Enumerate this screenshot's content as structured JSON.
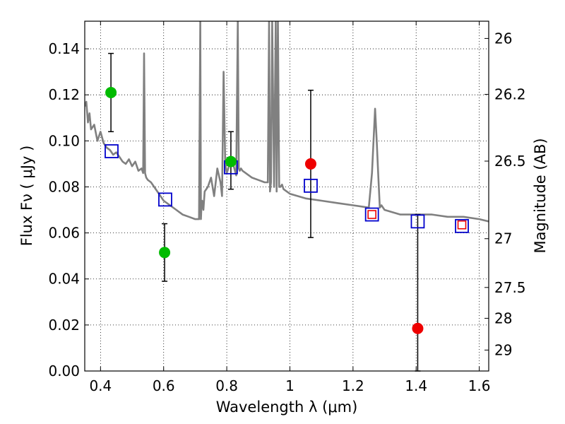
{
  "chart_data": {
    "type": "scatter",
    "xlabel": "Wavelength  λ (μm)",
    "ylabel": "Flux  Fν  ( μJy )",
    "ylabel_right": "Magnitude (AB)",
    "xlim": [
      0.35,
      1.63
    ],
    "ylim": [
      0.0,
      0.152
    ],
    "grid": true,
    "x_ticks": [
      0.4,
      0.6,
      0.8,
      1.0,
      1.2,
      1.4,
      1.6
    ],
    "x_tick_labels": [
      "0.4",
      "0.6",
      "0.8",
      "1",
      "1.2",
      "1.4",
      "1.6"
    ],
    "y_ticks": [
      0.0,
      0.02,
      0.04,
      0.06,
      0.08,
      0.1,
      0.12,
      0.14
    ],
    "y_tick_labels": [
      "0.00",
      "0.02",
      "0.04",
      "0.06",
      "0.08",
      "0.10",
      "0.12",
      "0.14"
    ],
    "right_ticks": [
      {
        "label": "26",
        "flux": 0.1445
      },
      {
        "label": "26.2",
        "flux": 0.1202
      },
      {
        "label": "26.5",
        "flux": 0.0912
      },
      {
        "label": "27",
        "flux": 0.0575
      },
      {
        "label": "27.5",
        "flux": 0.0363
      },
      {
        "label": "28",
        "flux": 0.0229
      },
      {
        "label": "29",
        "flux": 0.0091
      }
    ],
    "model_spectrum": {
      "name": "model",
      "color": "#808080",
      "x": [
        0.35,
        0.355,
        0.36,
        0.365,
        0.37,
        0.38,
        0.39,
        0.4,
        0.41,
        0.42,
        0.43,
        0.44,
        0.45,
        0.46,
        0.47,
        0.48,
        0.49,
        0.5,
        0.51,
        0.52,
        0.53,
        0.535,
        0.538,
        0.541,
        0.545,
        0.55,
        0.56,
        0.58,
        0.6,
        0.62,
        0.64,
        0.66,
        0.68,
        0.7,
        0.712,
        0.716,
        0.718,
        0.72,
        0.722,
        0.726,
        0.73,
        0.74,
        0.75,
        0.76,
        0.77,
        0.78,
        0.785,
        0.79,
        0.795,
        0.8,
        0.805,
        0.81,
        0.82,
        0.83,
        0.835,
        0.838,
        0.841,
        0.845,
        0.85,
        0.86,
        0.88,
        0.9,
        0.92,
        0.93,
        0.934,
        0.937,
        0.94,
        0.944,
        0.95,
        0.955,
        0.958,
        0.962,
        0.966,
        0.97,
        0.975,
        0.98,
        1.0,
        1.05,
        1.1,
        1.15,
        1.2,
        1.25,
        1.26,
        1.265,
        1.27,
        1.275,
        1.28,
        1.285,
        1.29,
        1.3,
        1.35,
        1.4,
        1.45,
        1.5,
        1.55,
        1.6,
        1.63
      ],
      "y": [
        0.115,
        0.117,
        0.108,
        0.112,
        0.105,
        0.107,
        0.1,
        0.104,
        0.099,
        0.097,
        0.096,
        0.094,
        0.095,
        0.093,
        0.091,
        0.09,
        0.092,
        0.089,
        0.091,
        0.087,
        0.088,
        0.086,
        0.138,
        0.086,
        0.084,
        0.083,
        0.082,
        0.078,
        0.074,
        0.072,
        0.07,
        0.068,
        0.067,
        0.066,
        0.066,
        0.152,
        0.066,
        0.072,
        0.074,
        0.07,
        0.078,
        0.08,
        0.084,
        0.076,
        0.088,
        0.082,
        0.076,
        0.13,
        0.09,
        0.086,
        0.088,
        0.092,
        0.09,
        0.085,
        0.152,
        0.088,
        0.087,
        0.088,
        0.087,
        0.086,
        0.084,
        0.083,
        0.082,
        0.082,
        0.152,
        0.078,
        0.082,
        0.152,
        0.08,
        0.152,
        0.078,
        0.152,
        0.08,
        0.08,
        0.081,
        0.079,
        0.077,
        0.075,
        0.074,
        0.073,
        0.072,
        0.071,
        0.086,
        0.1,
        0.114,
        0.1,
        0.085,
        0.071,
        0.072,
        0.07,
        0.068,
        0.068,
        0.068,
        0.067,
        0.067,
        0.066,
        0.065
      ]
    },
    "series": [
      {
        "name": "green points",
        "color": "#00bb00",
        "points": [
          {
            "x": 0.433,
            "y": 0.121,
            "err_low": 0.104,
            "err_high": 0.138
          },
          {
            "x": 0.603,
            "y": 0.0515,
            "err_low": 0.039,
            "err_high": 0.064
          },
          {
            "x": 0.813,
            "y": 0.091,
            "err_low": 0.079,
            "err_high": 0.104
          }
        ]
      },
      {
        "name": "red points",
        "color": "#ee0000",
        "points": [
          {
            "x": 1.066,
            "y": 0.09,
            "err_low": 0.058,
            "err_high": 0.122
          },
          {
            "x": 1.405,
            "y": 0.0185,
            "err_low": 0.0,
            "err_high": 0.068
          }
        ]
      },
      {
        "name": "blue model squares",
        "color": "#0000cc",
        "points": [
          {
            "x": 0.435,
            "y": 0.0955
          },
          {
            "x": 0.605,
            "y": 0.0745
          },
          {
            "x": 0.813,
            "y": 0.0885
          },
          {
            "x": 1.066,
            "y": 0.0805
          },
          {
            "x": 1.26,
            "y": 0.068
          },
          {
            "x": 1.405,
            "y": 0.065
          },
          {
            "x": 1.545,
            "y": 0.063
          }
        ]
      },
      {
        "name": "red small squares",
        "color": "#ee0000",
        "points": [
          {
            "x": 1.26,
            "y": 0.068
          },
          {
            "x": 1.545,
            "y": 0.0635
          }
        ]
      }
    ]
  }
}
